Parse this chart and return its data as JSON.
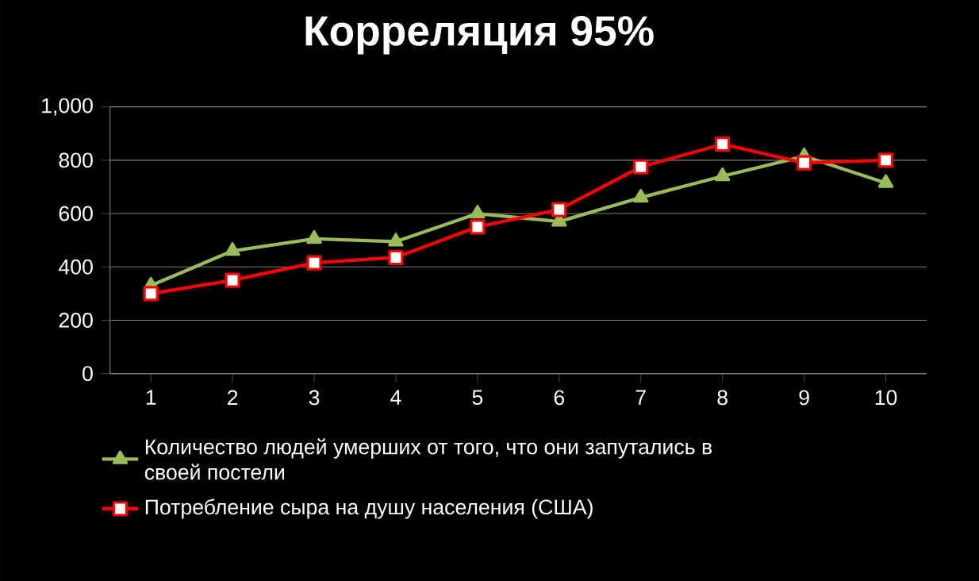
{
  "chart_data": {
    "type": "line",
    "title": "Корреляция 95%",
    "categories": [
      "1",
      "2",
      "3",
      "4",
      "5",
      "6",
      "7",
      "8",
      "9",
      "10"
    ],
    "series": [
      {
        "name": "Количество людей умерших от того, что они запутались в своей постели",
        "color": "#9bbb59",
        "marker": "triangle",
        "values": [
          330,
          460,
          505,
          495,
          600,
          570,
          660,
          740,
          815,
          715
        ]
      },
      {
        "name": "Потребление сыра на душу населения (США)",
        "color": "#ff0000",
        "marker": "square",
        "values": [
          300,
          350,
          415,
          435,
          550,
          615,
          775,
          860,
          790,
          800
        ]
      }
    ],
    "ylim": [
      0,
      1000
    ],
    "yticks": [
      0,
      200,
      400,
      600,
      800,
      {
        "value": 1000,
        "label": "1,000"
      }
    ],
    "grid": "y",
    "legend": "bottom",
    "line_style": "solid"
  }
}
